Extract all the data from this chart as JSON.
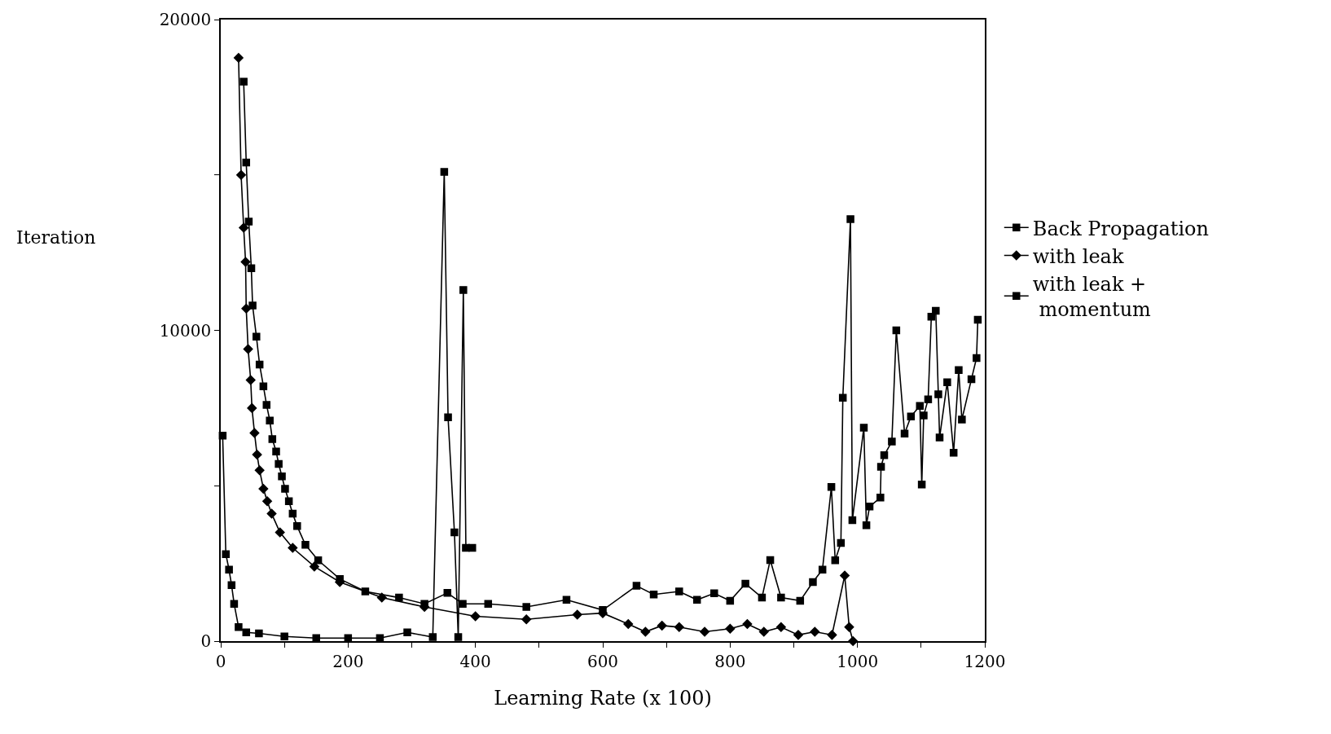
{
  "chart_data": {
    "type": "line",
    "xlabel": "Learning Rate (x 100)",
    "ylabel": "Iteration",
    "xlim": [
      0,
      1200
    ],
    "ylim": [
      0,
      20000
    ],
    "xticks": [
      0,
      {
        "value": 100,
        "label": null
      },
      200,
      {
        "value": 300,
        "label": null
      },
      400,
      {
        "value": 500,
        "label": null
      },
      600,
      {
        "value": 700,
        "label": null
      },
      800,
      {
        "value": 900,
        "label": null
      },
      1000,
      {
        "value": 1100,
        "label": null
      },
      1200
    ],
    "yticks": [
      0,
      {
        "value": 5000,
        "label": null
      },
      10000,
      {
        "value": 15000,
        "label": null
      },
      20000
    ],
    "legend": "right",
    "line_style": "solid",
    "series": [
      {
        "name": "Back Propagation",
        "color": "#000000",
        "marker": "square",
        "x": [
          36,
          40,
          44,
          48,
          50,
          56,
          61,
          67,
          72,
          77,
          81,
          87,
          91,
          96,
          101,
          107,
          113,
          120,
          133,
          153,
          187,
          227,
          280,
          320,
          356,
          380,
          420,
          480,
          543,
          600,
          653,
          680,
          720,
          748,
          775,
          800,
          824,
          850,
          863,
          880,
          910,
          930,
          945,
          959,
          965,
          974,
          977,
          989,
          992,
          1010,
          1014,
          1019,
          1036,
          1037,
          1042,
          1054,
          1061,
          1074,
          1084,
          1098,
          1101,
          1104,
          1111,
          1116,
          1123,
          1127,
          1129,
          1141,
          1151,
          1159,
          1164,
          1179,
          1187,
          1189
        ],
        "values": [
          18000,
          15400,
          13500,
          12000,
          10800,
          9800,
          8900,
          8200,
          7600,
          7100,
          6500,
          6100,
          5700,
          5300,
          4900,
          4500,
          4100,
          3700,
          3100,
          2600,
          2000,
          1600,
          1400,
          1200,
          1550,
          1200,
          1200,
          1100,
          1330,
          1000,
          1780,
          1500,
          1600,
          1330,
          1540,
          1300,
          1850,
          1400,
          2610,
          1400,
          1300,
          1900,
          2300,
          4960,
          2600,
          3160,
          7830,
          13580,
          3890,
          6870,
          3730,
          4330,
          4620,
          5610,
          5980,
          6420,
          10000,
          6680,
          7230,
          7570,
          5040,
          7260,
          7780,
          10440,
          10630,
          7940,
          6550,
          8330,
          6060,
          8720,
          7130,
          8430,
          9110,
          10340
        ]
      },
      {
        "name": "with leak",
        "color": "#000000",
        "marker": "diamond",
        "x": [
          28,
          32,
          36,
          39,
          40,
          43,
          47,
          49,
          53,
          57,
          61,
          67,
          73,
          80,
          93,
          113,
          147,
          187,
          253,
          320,
          400,
          480,
          560,
          600,
          640,
          667,
          693,
          720,
          760,
          800,
          827,
          853,
          880,
          907,
          933,
          960,
          980,
          987,
          993
        ],
        "values": [
          18770,
          15000,
          13300,
          12200,
          10700,
          9400,
          8400,
          7500,
          6700,
          6000,
          5500,
          4900,
          4500,
          4100,
          3500,
          3000,
          2400,
          1900,
          1400,
          1100,
          800,
          700,
          850,
          900,
          550,
          300,
          500,
          450,
          300,
          400,
          550,
          300,
          450,
          200,
          300,
          200,
          2110,
          450,
          0
        ]
      },
      {
        "name": "with leak + momentum",
        "color": "#000000",
        "marker": "square",
        "x": [
          3,
          8,
          13,
          17,
          21,
          28,
          40,
          60,
          100,
          150,
          200,
          250,
          293,
          333,
          351,
          357,
          367,
          373,
          381,
          385,
          395
        ],
        "values": [
          6610,
          2800,
          2300,
          1800,
          1200,
          450,
          280,
          250,
          150,
          100,
          100,
          100,
          280,
          130,
          15100,
          7200,
          3500,
          130,
          11300,
          3000,
          3000
        ]
      }
    ]
  }
}
